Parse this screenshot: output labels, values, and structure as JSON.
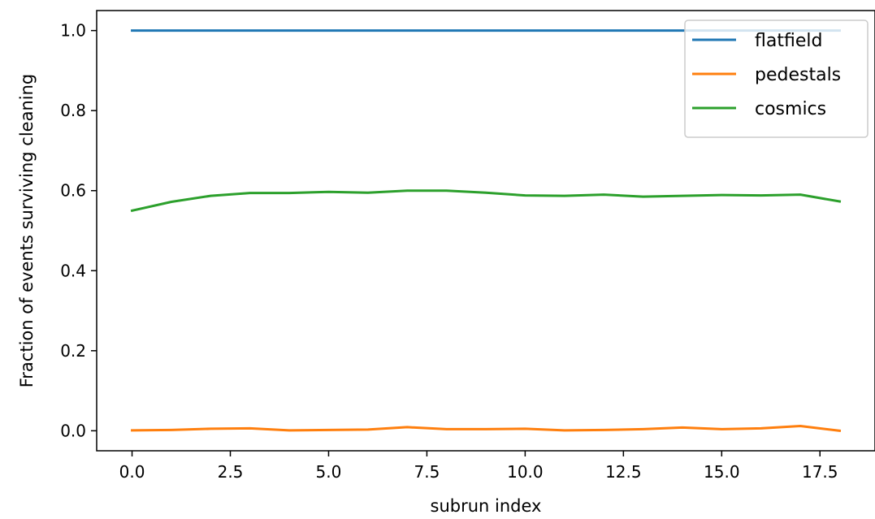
{
  "chart_data": {
    "type": "line",
    "title": "",
    "xlabel": "subrun index",
    "ylabel": "Fraction of events surviving cleaning",
    "x": [
      0,
      1,
      2,
      3,
      4,
      5,
      6,
      7,
      8,
      9,
      10,
      11,
      12,
      13,
      14,
      15,
      16,
      17,
      18
    ],
    "xlim": [
      -0.9,
      18.9
    ],
    "ylim": [
      -0.05,
      1.05
    ],
    "xticks": [
      0.0,
      2.5,
      5.0,
      7.5,
      10.0,
      12.5,
      15.0,
      17.5
    ],
    "xtick_labels": [
      "0.0",
      "2.5",
      "5.0",
      "7.5",
      "10.0",
      "12.5",
      "15.0",
      "17.5"
    ],
    "yticks": [
      0.0,
      0.2,
      0.4,
      0.6,
      0.8,
      1.0
    ],
    "ytick_labels": [
      "0.0",
      "0.2",
      "0.4",
      "0.6",
      "0.8",
      "1.0"
    ],
    "grid": false,
    "legend": "top-right",
    "series": [
      {
        "name": "flatfield",
        "color": "#1f77b4",
        "values": [
          1,
          1,
          1,
          1,
          1,
          1,
          1,
          1,
          1,
          1,
          1,
          1,
          1,
          1,
          1,
          1,
          1,
          1,
          1
        ]
      },
      {
        "name": "pedestals",
        "color": "#ff7f0e",
        "values": [
          0.001,
          0.002,
          0.005,
          0.006,
          0.001,
          0.002,
          0.003,
          0.009,
          0.004,
          0.004,
          0.005,
          0.001,
          0.002,
          0.004,
          0.008,
          0.004,
          0.006,
          0.012,
          0.0
        ]
      },
      {
        "name": "cosmics",
        "color": "#2ca02c",
        "values": [
          0.55,
          0.572,
          0.587,
          0.594,
          0.594,
          0.597,
          0.595,
          0.6,
          0.6,
          0.595,
          0.588,
          0.587,
          0.59,
          0.585,
          0.587,
          0.589,
          0.588,
          0.59,
          0.573
        ]
      }
    ]
  }
}
